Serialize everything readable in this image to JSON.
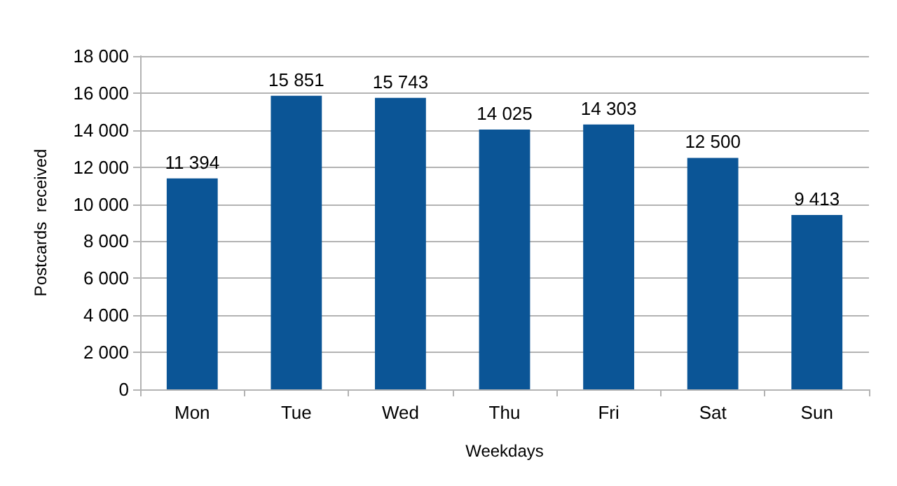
{
  "chart_data": {
    "type": "bar",
    "xlabel": "Weekdays",
    "ylabel": "Postcards  received",
    "categories": [
      "Mon",
      "Tue",
      "Wed",
      "Thu",
      "Fri",
      "Sat",
      "Sun"
    ],
    "values": [
      11394,
      15851,
      15743,
      14025,
      14303,
      12500,
      9413
    ],
    "value_labels": [
      "11 394",
      "15 851",
      "15 743",
      "14 025",
      "14 303",
      "12 500",
      "9 413"
    ],
    "color": "#0b5596",
    "ylim": [
      0,
      18000
    ],
    "yticks": [
      {
        "value": 0,
        "label": "0"
      },
      {
        "value": 2000,
        "label": "2 000"
      },
      {
        "value": 4000,
        "label": "4 000"
      },
      {
        "value": 6000,
        "label": "6 000"
      },
      {
        "value": 8000,
        "label": "8 000"
      },
      {
        "value": 10000,
        "label": "10 000"
      },
      {
        "value": 12000,
        "label": "12 000"
      },
      {
        "value": 14000,
        "label": "14 000"
      },
      {
        "value": 16000,
        "label": "16 000"
      },
      {
        "value": 18000,
        "label": "18 000"
      }
    ],
    "grid": "y"
  }
}
